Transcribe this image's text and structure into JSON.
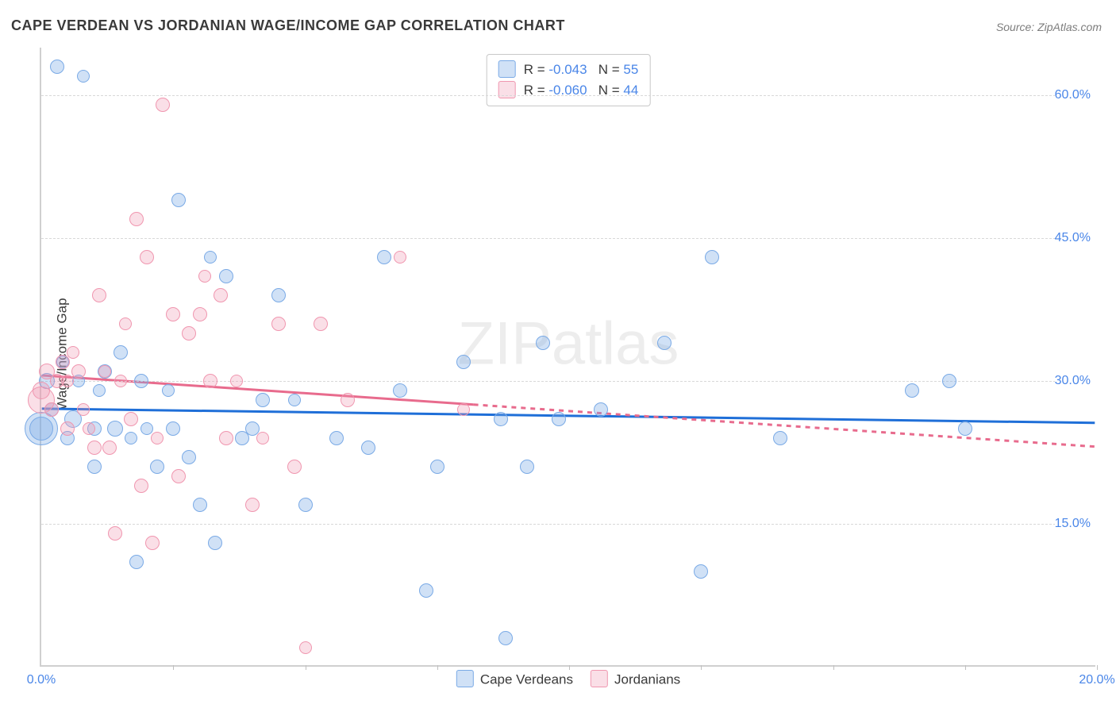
{
  "title": "CAPE VERDEAN VS JORDANIAN WAGE/INCOME GAP CORRELATION CHART",
  "source": "Source: ZipAtlas.com",
  "ylabel": "Wage/Income Gap",
  "watermark": "ZIPatlas",
  "chart": {
    "type": "scatter",
    "xlim": [
      0,
      20
    ],
    "ylim": [
      0,
      65
    ],
    "x_ticks": [
      0,
      2.5,
      5,
      7.5,
      10,
      12.5,
      15,
      17.5,
      20
    ],
    "x_tick_labels": {
      "0": "0.0%",
      "20": "20.0%"
    },
    "y_ticks": [
      15,
      30,
      45,
      60
    ],
    "y_tick_labels": {
      "15": "15.0%",
      "30": "30.0%",
      "45": "45.0%",
      "60": "60.0%"
    },
    "background_color": "#ffffff",
    "grid_color": "#d8d8d8",
    "grid_dash": true,
    "axis_color": "#d0d0d0",
    "tick_label_color": "#4a86e8",
    "tick_fontsize": 16,
    "title_fontsize": 18,
    "title_color": "#3a3a3a"
  },
  "series": [
    {
      "name": "Cape Verdeans",
      "fill": "rgba(120,170,230,0.35)",
      "stroke": "#7aaae6",
      "line_color": "#1f6fd8",
      "line_width": 3,
      "R": "-0.043",
      "N": "55",
      "trend": {
        "y_at_x0": 27.0,
        "y_at_x20": 25.5,
        "solid_until_x": 20.0
      },
      "points": [
        {
          "x": 0.0,
          "y": 25,
          "r": 20
        },
        {
          "x": 0.0,
          "y": 25,
          "r": 14
        },
        {
          "x": 0.1,
          "y": 30,
          "r": 9
        },
        {
          "x": 0.2,
          "y": 27,
          "r": 8
        },
        {
          "x": 0.3,
          "y": 63,
          "r": 8
        },
        {
          "x": 0.4,
          "y": 32,
          "r": 7
        },
        {
          "x": 0.5,
          "y": 24,
          "r": 8
        },
        {
          "x": 0.6,
          "y": 26,
          "r": 10
        },
        {
          "x": 0.7,
          "y": 30,
          "r": 7
        },
        {
          "x": 0.8,
          "y": 62,
          "r": 7
        },
        {
          "x": 1.0,
          "y": 25,
          "r": 8
        },
        {
          "x": 1.0,
          "y": 21,
          "r": 8
        },
        {
          "x": 1.1,
          "y": 29,
          "r": 7
        },
        {
          "x": 1.2,
          "y": 31,
          "r": 8
        },
        {
          "x": 1.4,
          "y": 25,
          "r": 9
        },
        {
          "x": 1.5,
          "y": 33,
          "r": 8
        },
        {
          "x": 1.7,
          "y": 24,
          "r": 7
        },
        {
          "x": 1.8,
          "y": 11,
          "r": 8
        },
        {
          "x": 1.9,
          "y": 30,
          "r": 8
        },
        {
          "x": 2.0,
          "y": 25,
          "r": 7
        },
        {
          "x": 2.2,
          "y": 21,
          "r": 8
        },
        {
          "x": 2.4,
          "y": 29,
          "r": 7
        },
        {
          "x": 2.5,
          "y": 25,
          "r": 8
        },
        {
          "x": 2.6,
          "y": 49,
          "r": 8
        },
        {
          "x": 2.8,
          "y": 22,
          "r": 8
        },
        {
          "x": 3.0,
          "y": 17,
          "r": 8
        },
        {
          "x": 3.2,
          "y": 43,
          "r": 7
        },
        {
          "x": 3.3,
          "y": 13,
          "r": 8
        },
        {
          "x": 3.5,
          "y": 41,
          "r": 8
        },
        {
          "x": 3.8,
          "y": 24,
          "r": 8
        },
        {
          "x": 4.0,
          "y": 25,
          "r": 8
        },
        {
          "x": 4.2,
          "y": 28,
          "r": 8
        },
        {
          "x": 4.5,
          "y": 39,
          "r": 8
        },
        {
          "x": 4.8,
          "y": 28,
          "r": 7
        },
        {
          "x": 5.0,
          "y": 17,
          "r": 8
        },
        {
          "x": 5.6,
          "y": 24,
          "r": 8
        },
        {
          "x": 6.2,
          "y": 23,
          "r": 8
        },
        {
          "x": 6.5,
          "y": 43,
          "r": 8
        },
        {
          "x": 6.8,
          "y": 29,
          "r": 8
        },
        {
          "x": 7.3,
          "y": 8,
          "r": 8
        },
        {
          "x": 7.5,
          "y": 21,
          "r": 8
        },
        {
          "x": 8.0,
          "y": 32,
          "r": 8
        },
        {
          "x": 8.7,
          "y": 26,
          "r": 8
        },
        {
          "x": 8.8,
          "y": 3,
          "r": 8
        },
        {
          "x": 9.2,
          "y": 21,
          "r": 8
        },
        {
          "x": 9.5,
          "y": 34,
          "r": 8
        },
        {
          "x": 9.8,
          "y": 26,
          "r": 8
        },
        {
          "x": 10.6,
          "y": 27,
          "r": 8
        },
        {
          "x": 11.8,
          "y": 34,
          "r": 8
        },
        {
          "x": 12.5,
          "y": 10,
          "r": 8
        },
        {
          "x": 12.7,
          "y": 43,
          "r": 8
        },
        {
          "x": 14.0,
          "y": 24,
          "r": 8
        },
        {
          "x": 16.5,
          "y": 29,
          "r": 8
        },
        {
          "x": 17.2,
          "y": 30,
          "r": 8
        },
        {
          "x": 17.5,
          "y": 25,
          "r": 8
        }
      ]
    },
    {
      "name": "Jordanians",
      "fill": "rgba(240,150,175,0.30)",
      "stroke": "#f096af",
      "line_color": "#e86b8d",
      "line_width": 3,
      "R": "-0.060",
      "N": "44",
      "trend": {
        "y_at_x0": 30.5,
        "y_at_x20": 23.0,
        "solid_until_x": 8.2
      },
      "points": [
        {
          "x": 0.0,
          "y": 28,
          "r": 16
        },
        {
          "x": 0.0,
          "y": 29,
          "r": 10
        },
        {
          "x": 0.1,
          "y": 31,
          "r": 9
        },
        {
          "x": 0.2,
          "y": 27,
          "r": 8
        },
        {
          "x": 0.3,
          "y": 30,
          "r": 8
        },
        {
          "x": 0.4,
          "y": 32,
          "r": 8
        },
        {
          "x": 0.5,
          "y": 25,
          "r": 8
        },
        {
          "x": 0.5,
          "y": 30,
          "r": 7
        },
        {
          "x": 0.6,
          "y": 33,
          "r": 7
        },
        {
          "x": 0.7,
          "y": 31,
          "r": 8
        },
        {
          "x": 0.8,
          "y": 27,
          "r": 7
        },
        {
          "x": 0.9,
          "y": 25,
          "r": 7
        },
        {
          "x": 1.0,
          "y": 23,
          "r": 8
        },
        {
          "x": 1.1,
          "y": 39,
          "r": 8
        },
        {
          "x": 1.2,
          "y": 31,
          "r": 7
        },
        {
          "x": 1.3,
          "y": 23,
          "r": 8
        },
        {
          "x": 1.4,
          "y": 14,
          "r": 8
        },
        {
          "x": 1.5,
          "y": 30,
          "r": 7
        },
        {
          "x": 1.6,
          "y": 36,
          "r": 7
        },
        {
          "x": 1.7,
          "y": 26,
          "r": 8
        },
        {
          "x": 1.8,
          "y": 47,
          "r": 8
        },
        {
          "x": 1.9,
          "y": 19,
          "r": 8
        },
        {
          "x": 2.0,
          "y": 43,
          "r": 8
        },
        {
          "x": 2.1,
          "y": 13,
          "r": 8
        },
        {
          "x": 2.2,
          "y": 24,
          "r": 7
        },
        {
          "x": 2.3,
          "y": 59,
          "r": 8
        },
        {
          "x": 2.5,
          "y": 37,
          "r": 8
        },
        {
          "x": 2.6,
          "y": 20,
          "r": 8
        },
        {
          "x": 2.8,
          "y": 35,
          "r": 8
        },
        {
          "x": 3.0,
          "y": 37,
          "r": 8
        },
        {
          "x": 3.1,
          "y": 41,
          "r": 7
        },
        {
          "x": 3.2,
          "y": 30,
          "r": 8
        },
        {
          "x": 3.4,
          "y": 39,
          "r": 8
        },
        {
          "x": 3.5,
          "y": 24,
          "r": 8
        },
        {
          "x": 3.7,
          "y": 30,
          "r": 7
        },
        {
          "x": 4.0,
          "y": 17,
          "r": 8
        },
        {
          "x": 4.2,
          "y": 24,
          "r": 7
        },
        {
          "x": 4.5,
          "y": 36,
          "r": 8
        },
        {
          "x": 4.8,
          "y": 21,
          "r": 8
        },
        {
          "x": 5.0,
          "y": 2,
          "r": 7
        },
        {
          "x": 5.3,
          "y": 36,
          "r": 8
        },
        {
          "x": 5.8,
          "y": 28,
          "r": 8
        },
        {
          "x": 6.8,
          "y": 43,
          "r": 7
        },
        {
          "x": 8.0,
          "y": 27,
          "r": 7
        }
      ]
    }
  ],
  "legend_top": {
    "rows": [
      {
        "swatch_fill": "rgba(120,170,230,0.35)",
        "swatch_stroke": "#7aaae6",
        "R_label": "R =",
        "R": "-0.043",
        "N_label": "N =",
        "N": "55"
      },
      {
        "swatch_fill": "rgba(240,150,175,0.30)",
        "swatch_stroke": "#f096af",
        "R_label": "R =",
        "R": "-0.060",
        "N_label": "N =",
        "N": "44"
      }
    ]
  },
  "legend_bottom": {
    "items": [
      {
        "swatch_fill": "rgba(120,170,230,0.35)",
        "swatch_stroke": "#7aaae6",
        "label": "Cape Verdeans"
      },
      {
        "swatch_fill": "rgba(240,150,175,0.30)",
        "swatch_stroke": "#f096af",
        "label": "Jordanians"
      }
    ]
  }
}
